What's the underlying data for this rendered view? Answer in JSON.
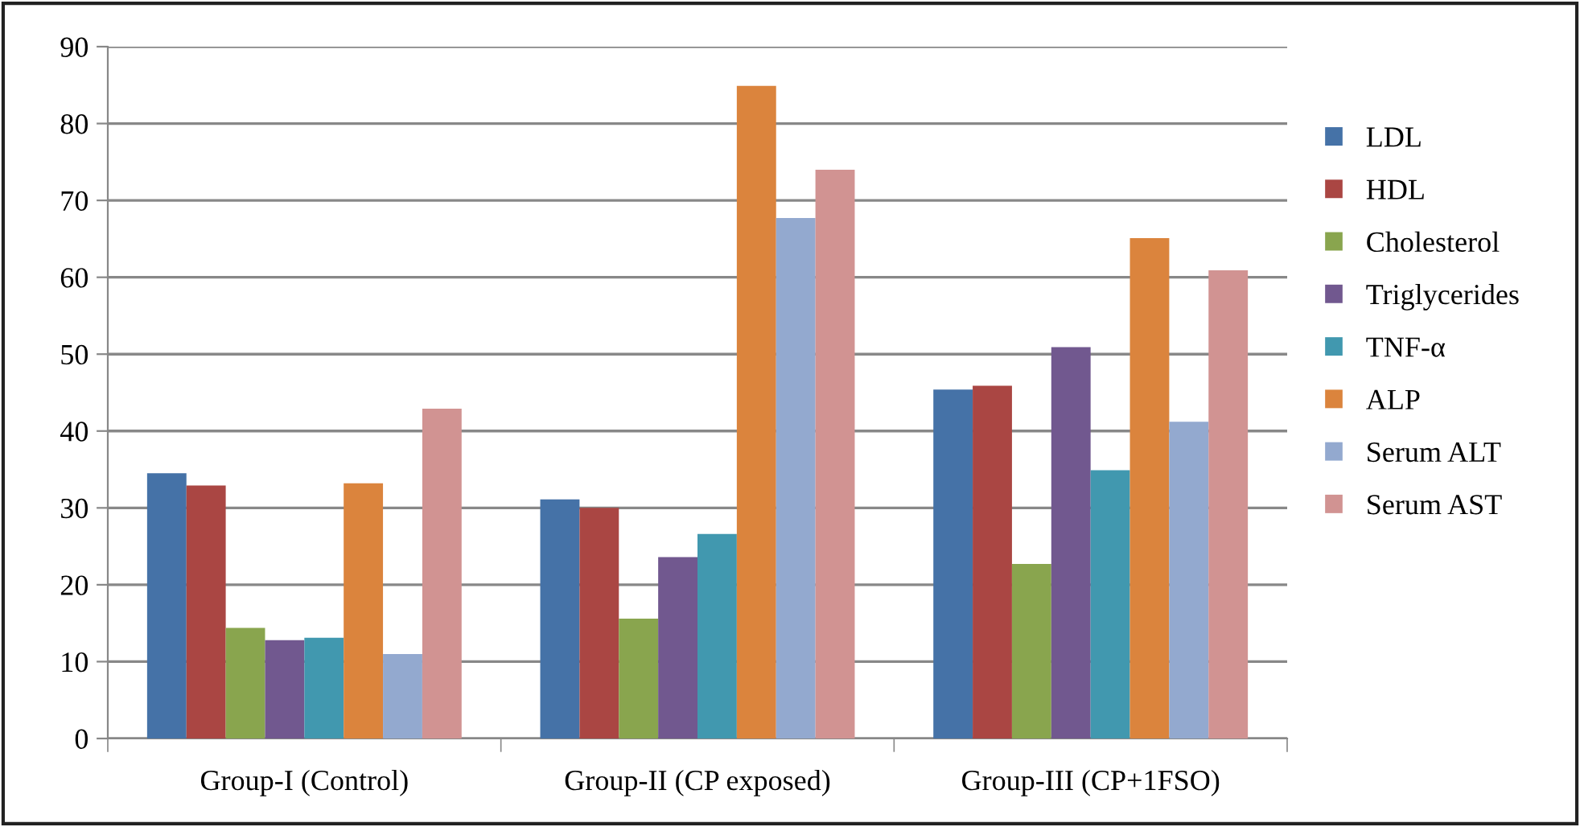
{
  "chart_data": {
    "type": "bar",
    "categories": [
      "Group-I (Control)",
      "Group-II (CP exposed)",
      "Group-III (CP+1FSO)"
    ],
    "series": [
      {
        "name": "LDL",
        "color": "#4572a7",
        "values": [
          34.5,
          31.1,
          45.4
        ]
      },
      {
        "name": "HDL",
        "color": "#aa4643",
        "values": [
          32.9,
          30.0,
          45.9
        ]
      },
      {
        "name": "Cholesterol",
        "color": "#89a54e",
        "values": [
          14.4,
          15.6,
          22.7
        ]
      },
      {
        "name": "Triglycerides",
        "color": "#71588f",
        "values": [
          12.8,
          23.6,
          50.9
        ]
      },
      {
        "name": "TNF-α",
        "color": "#4198af",
        "values": [
          13.1,
          26.6,
          34.9
        ]
      },
      {
        "name": "ALP",
        "color": "#db843d",
        "values": [
          33.2,
          84.9,
          65.1
        ]
      },
      {
        "name": "Serum ALT",
        "color": "#93a9cf",
        "values": [
          11.0,
          67.7,
          41.2
        ]
      },
      {
        "name": "Serum AST",
        "color": "#d19392",
        "values": [
          42.9,
          74.0,
          60.9
        ]
      }
    ],
    "ylim": [
      0,
      90
    ],
    "yticks": [
      0,
      10,
      20,
      30,
      40,
      50,
      60,
      70,
      80,
      90
    ],
    "grid": "y",
    "legend": "right"
  }
}
